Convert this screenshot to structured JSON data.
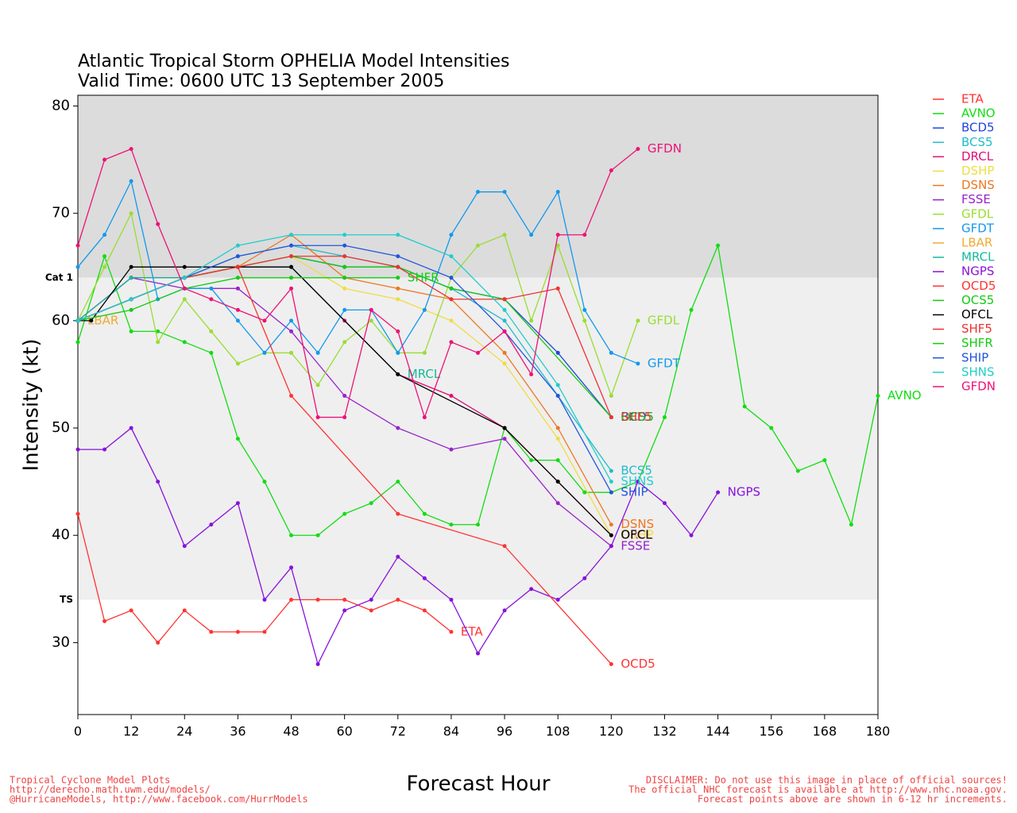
{
  "chart_data": {
    "type": "line",
    "title": "Atlantic Tropical Storm OPHELIA Model Intensities",
    "subtitle": "Valid Time: 0600 UTC 13 September 2005",
    "x_label": "Forecast Hour",
    "y_label": "Intensity (kt)",
    "xlim": [
      0,
      180
    ],
    "ylim": [
      23.3,
      81
    ],
    "xticks": [
      0,
      12,
      24,
      36,
      48,
      60,
      72,
      84,
      96,
      108,
      120,
      132,
      144,
      156,
      168,
      180
    ],
    "yticks": [
      30,
      40,
      50,
      60,
      70,
      80
    ],
    "thresholds": [
      {
        "value": 64,
        "label": "Cat 1"
      },
      {
        "value": 34,
        "label": "TS"
      }
    ],
    "series": [
      {
        "name": "ETA",
        "color": "#ff3333",
        "x": [
          0,
          6,
          12,
          18,
          24,
          30,
          36,
          42,
          48,
          54,
          60,
          66,
          72,
          78,
          84
        ],
        "values": [
          42,
          32,
          33,
          30,
          33,
          31,
          31,
          31,
          34,
          34,
          34,
          33,
          34,
          33,
          31
        ]
      },
      {
        "name": "AVNO",
        "color": "#11dd11",
        "x": [
          0,
          6,
          12,
          18,
          24,
          30,
          36,
          42,
          48,
          54,
          60,
          66,
          72,
          78,
          84,
          90,
          96,
          102,
          108,
          114,
          120,
          126,
          132,
          138,
          144,
          150,
          156,
          162,
          168,
          174,
          180
        ],
        "values": [
          58,
          66,
          59,
          59,
          58,
          57,
          49,
          45,
          40,
          40,
          42,
          43,
          45,
          42,
          41,
          41,
          50,
          47,
          47,
          44,
          44,
          45,
          51,
          61,
          67,
          52,
          50,
          46,
          47,
          41,
          53
        ]
      },
      {
        "name": "BCD5",
        "color": "#2244dd",
        "x": [
          0,
          12,
          24,
          36,
          48,
          60,
          72,
          84,
          96,
          108,
          120
        ],
        "values": [
          60,
          62,
          64,
          65,
          66,
          65,
          65,
          63,
          62,
          57,
          51
        ]
      },
      {
        "name": "BCS5",
        "color": "#22bbcc",
        "x": [
          0,
          12,
          24,
          36,
          48,
          60,
          72,
          84,
          96,
          108,
          120
        ],
        "values": [
          60,
          62,
          64,
          66,
          67,
          66,
          65,
          63,
          60,
          53,
          46
        ]
      },
      {
        "name": "DRCL",
        "color": "#dd1177",
        "x": [
          0,
          12,
          24,
          36,
          48,
          60,
          72,
          84,
          96,
          108,
          120
        ],
        "values": [
          60,
          64,
          64,
          65,
          65,
          60,
          55,
          53,
          50,
          45,
          40
        ]
      },
      {
        "name": "DSHP",
        "color": "#eedd44",
        "x": [
          0,
          12,
          24,
          36,
          48,
          60,
          72,
          84,
          96,
          108,
          120
        ],
        "values": [
          60,
          62,
          64,
          65,
          66,
          63,
          62,
          60,
          56,
          49,
          40
        ]
      },
      {
        "name": "DSNS",
        "color": "#ee7722",
        "x": [
          0,
          12,
          24,
          36,
          48,
          60,
          72,
          84,
          96,
          108,
          120
        ],
        "values": [
          60,
          62,
          64,
          65,
          68,
          64,
          63,
          62,
          57,
          50,
          41
        ]
      },
      {
        "name": "FSSE",
        "color": "#9922cc",
        "x": [
          0,
          12,
          24,
          36,
          48,
          60,
          72,
          84,
          96,
          108,
          120
        ],
        "values": [
          60,
          64,
          63,
          63,
          59,
          53,
          50,
          48,
          49,
          43,
          39
        ]
      },
      {
        "name": "GFDL",
        "color": "#99dd33",
        "x": [
          0,
          6,
          12,
          18,
          24,
          30,
          36,
          42,
          48,
          54,
          60,
          66,
          72,
          78,
          84,
          90,
          96,
          102,
          108,
          114,
          120,
          126
        ],
        "values": [
          60,
          65,
          70,
          58,
          62,
          59,
          56,
          57,
          57,
          54,
          58,
          60,
          57,
          57,
          64,
          67,
          68,
          60,
          67,
          60,
          53,
          60
        ]
      },
      {
        "name": "GFDT",
        "color": "#1199ee",
        "x": [
          0,
          6,
          12,
          18,
          24,
          30,
          36,
          42,
          48,
          54,
          60,
          66,
          72,
          78,
          84,
          90,
          96,
          102,
          108,
          114,
          120,
          126
        ],
        "values": [
          65,
          68,
          73,
          62,
          63,
          63,
          60,
          57,
          60,
          57,
          61,
          61,
          57,
          61,
          68,
          72,
          72,
          68,
          72,
          61,
          57,
          56
        ]
      },
      {
        "name": "LBAR",
        "color": "#eeaa33",
        "x": [
          0
        ],
        "values": [
          60
        ]
      },
      {
        "name": "MRCL",
        "color": "#11bb99",
        "x": [
          0,
          12,
          24,
          36,
          48,
          72
        ],
        "values": [
          60,
          64,
          64,
          65,
          65,
          55
        ]
      },
      {
        "name": "NGPS",
        "color": "#8811dd",
        "x": [
          0,
          6,
          12,
          18,
          24,
          30,
          36,
          42,
          48,
          54,
          60,
          66,
          72,
          78,
          84,
          90,
          96,
          102,
          108,
          114,
          120,
          126,
          132,
          138,
          144
        ],
        "values": [
          48,
          48,
          50,
          45,
          39,
          41,
          43,
          34,
          37,
          28,
          33,
          34,
          38,
          36,
          34,
          29,
          33,
          35,
          34,
          36,
          39,
          45,
          43,
          40,
          44
        ]
      },
      {
        "name": "OCD5",
        "color": "#ff3333",
        "x": [
          0,
          12,
          24,
          36,
          48,
          72,
          96,
          120
        ],
        "values": [
          60,
          62,
          64,
          65,
          53,
          42,
          39,
          28
        ]
      },
      {
        "name": "OCS5",
        "color": "#11cc11",
        "x": [
          0,
          12,
          24,
          36,
          48,
          60,
          72,
          84,
          96,
          120
        ],
        "values": [
          60,
          62,
          64,
          65,
          66,
          65,
          65,
          63,
          62,
          51
        ]
      },
      {
        "name": "OFCL",
        "color": "#000000",
        "x": [
          0,
          3,
          12,
          24,
          36,
          48,
          72,
          96,
          108,
          120
        ],
        "values": [
          60,
          60,
          65,
          65,
          65,
          65,
          55,
          50,
          45,
          40
        ]
      },
      {
        "name": "SHF5",
        "color": "#ee3333",
        "x": [
          0,
          12,
          24,
          36,
          48,
          60,
          72,
          84,
          96,
          108,
          120
        ],
        "values": [
          60,
          62,
          64,
          65,
          66,
          66,
          65,
          62,
          62,
          63,
          51
        ]
      },
      {
        "name": "SHFR",
        "color": "#11cc11",
        "x": [
          0,
          12,
          24,
          36,
          48,
          60,
          72
        ],
        "values": [
          60,
          61,
          63,
          64,
          64,
          64,
          64
        ]
      },
      {
        "name": "SHIP",
        "color": "#2255dd",
        "x": [
          0,
          12,
          24,
          36,
          48,
          60,
          72,
          84,
          96,
          108,
          120
        ],
        "values": [
          60,
          62,
          64,
          66,
          67,
          67,
          66,
          64,
          59,
          53,
          44
        ]
      },
      {
        "name": "SHNS",
        "color": "#22cccc",
        "x": [
          0,
          12,
          24,
          36,
          48,
          60,
          72,
          84,
          96,
          108,
          120
        ],
        "values": [
          60,
          62,
          64,
          67,
          68,
          68,
          68,
          66,
          61,
          54,
          45
        ]
      },
      {
        "name": "GFDN",
        "color": "#ee1177",
        "x": [
          0,
          6,
          12,
          18,
          24,
          30,
          36,
          42,
          48,
          54,
          60,
          66,
          72,
          78,
          84,
          90,
          96,
          102,
          108,
          114,
          120,
          126
        ],
        "values": [
          67,
          75,
          76,
          69,
          63,
          62,
          61,
          60,
          63,
          51,
          51,
          61,
          59,
          51,
          58,
          57,
          59,
          55,
          68,
          68,
          74,
          76
        ]
      }
    ],
    "footer_left": [
      "Tropical Cyclone Model Plots",
      "http://derecho.math.uwm.edu/models/",
      "@HurricaneModels, http://www.facebook.com/HurrModels"
    ],
    "footer_right": [
      "DISCLAIMER: Do not use this image in place of official sources!",
      "The official NHC forecast is available at http://www.nhc.noaa.gov.",
      "Forecast points above are shown in 6-12 hr increments."
    ]
  }
}
